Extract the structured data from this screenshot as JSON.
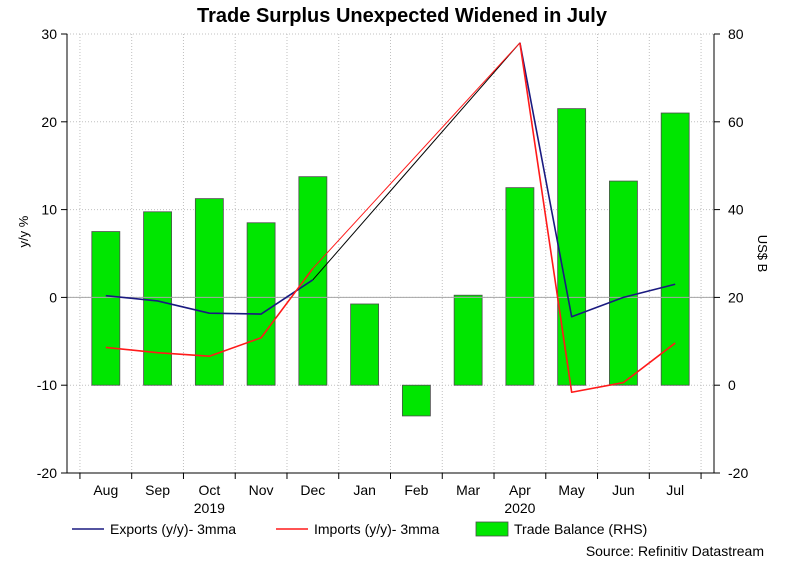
{
  "chart_data": {
    "type": "bar+line",
    "title": "Trade Surplus Unexpected Widened in July",
    "categories": [
      "Aug",
      "Sep",
      "Oct",
      "Nov",
      "Dec",
      "Jan",
      "Feb",
      "Mar",
      "Apr",
      "May",
      "Jun",
      "Jul"
    ],
    "year_labels": [
      {
        "label": "2019",
        "under": "Oct"
      },
      {
        "label": "2020",
        "under": "Apr"
      }
    ],
    "ylabel_left": "y/y %",
    "ylabel_right": "US$ B",
    "ylim_left": [
      -20,
      30
    ],
    "ylim_right": [
      -20,
      80
    ],
    "yticks_left": [
      -20,
      -10,
      0,
      10,
      20,
      30
    ],
    "yticks_right": [
      -20,
      0,
      20,
      40,
      60,
      80
    ],
    "grid": true,
    "series": [
      {
        "name": "Exports (y/y)- 3mma",
        "type": "line",
        "axis": "left",
        "color": "#1a1a80",
        "values": [
          0.2,
          -0.4,
          -1.8,
          -1.9,
          2.0,
          null,
          null,
          null,
          29.0,
          -2.2,
          0.0,
          1.5
        ]
      },
      {
        "name": "Imports (y/y)- 3mma",
        "type": "line",
        "axis": "left",
        "color": "#ff1a1a",
        "values": [
          -5.7,
          -6.3,
          -6.7,
          -4.6,
          3.3,
          null,
          null,
          null,
          29.0,
          -10.8,
          -9.7,
          -5.2
        ]
      },
      {
        "name": "Trade Balance (RHS)",
        "type": "bar",
        "axis": "right",
        "color": "#00e600",
        "values": [
          35.0,
          39.5,
          42.5,
          37.0,
          47.5,
          18.5,
          -7.0,
          20.5,
          45.0,
          63.0,
          46.5,
          62.0
        ]
      }
    ],
    "connector_lines": [
      {
        "from": "Dec",
        "to": "Apr",
        "color": "#000000",
        "axis": "left",
        "values": [
          2.0,
          29.0
        ]
      },
      {
        "from": "Dec",
        "to": "Apr",
        "color": "#ff1a1a",
        "axis": "left",
        "values": [
          3.3,
          29.0
        ]
      }
    ],
    "legend": {
      "placement": "bottom",
      "items": [
        {
          "label": "Exports (y/y)- 3mma",
          "kind": "line",
          "color": "#1a1a80"
        },
        {
          "label": "Imports (y/y)- 3mma",
          "kind": "line",
          "color": "#ff1a1a"
        },
        {
          "label": "Trade Balance (RHS)",
          "kind": "box",
          "color": "#00e600"
        }
      ]
    },
    "source": "Source: Refinitiv Datastream"
  }
}
